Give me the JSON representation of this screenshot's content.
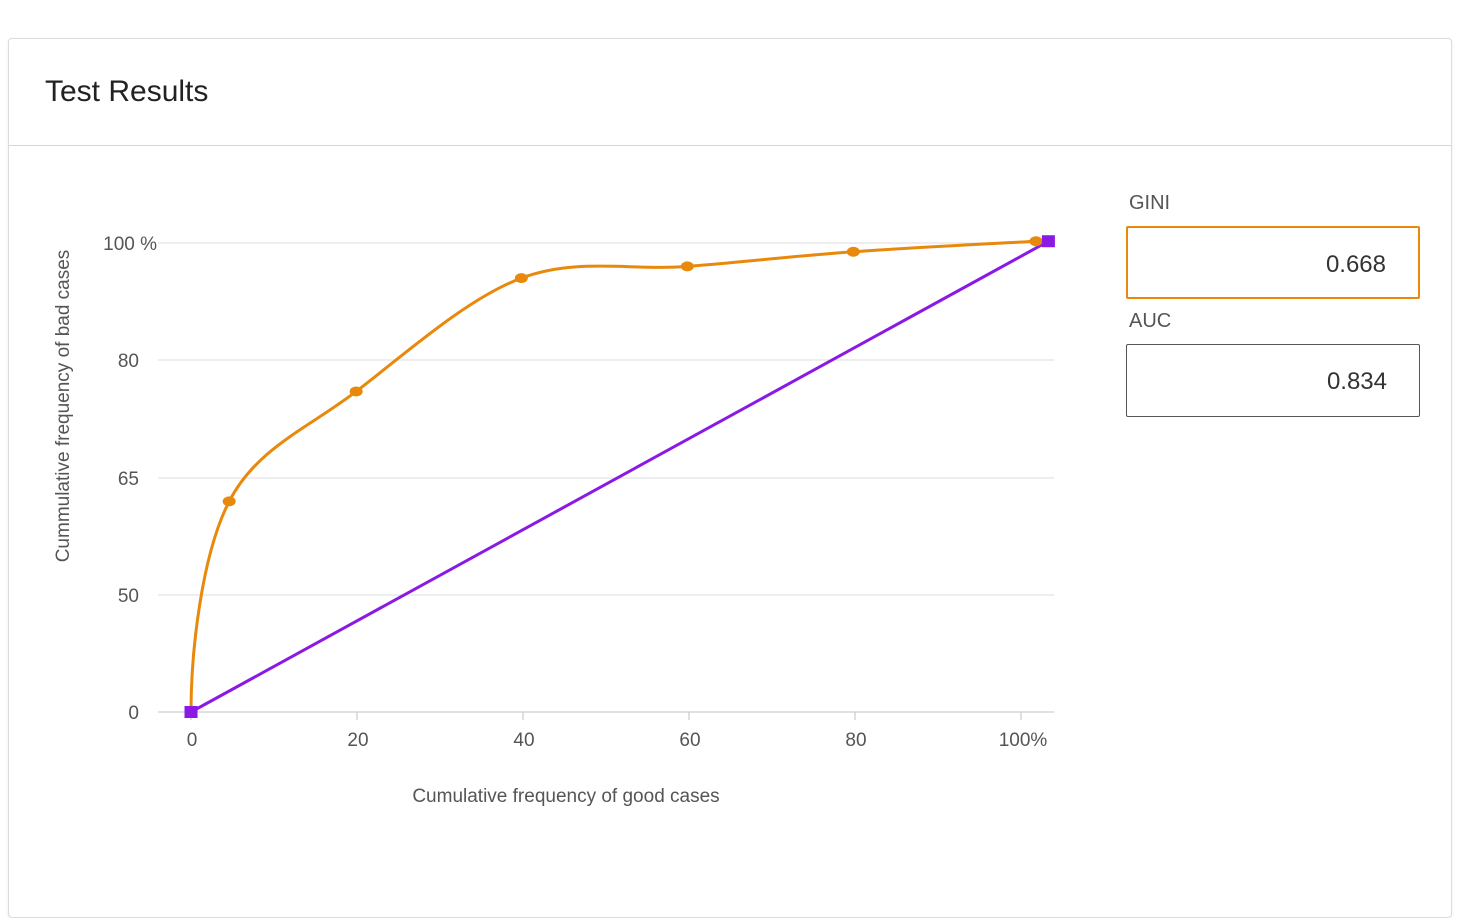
{
  "card": {
    "title": "Test Results"
  },
  "metrics": {
    "gini_label": "GINI",
    "gini_value": "0.668",
    "auc_label": "AUC",
    "auc_value": "0.834"
  },
  "colors": {
    "model_curve": "#e8890c",
    "baseline": "#8a19e6",
    "grid": "#e4e4e4",
    "axis_text": "#555555"
  },
  "chart_data": {
    "type": "line",
    "xlabel": "Cumulative frequency of good cases",
    "ylabel": "Cummulative frequency of bad cases",
    "x_ticks": [
      {
        "value": 0,
        "label": "0"
      },
      {
        "value": 20,
        "label": "20"
      },
      {
        "value": 40,
        "label": "40"
      },
      {
        "value": 60,
        "label": "60"
      },
      {
        "value": 80,
        "label": "80"
      },
      {
        "value": 100,
        "label": "100%"
      }
    ],
    "y_ticks": [
      {
        "value": 0,
        "label": "0"
      },
      {
        "value": 50,
        "label": "50"
      },
      {
        "value": 65,
        "label": "65"
      },
      {
        "value": 80,
        "label": "80"
      },
      {
        "value": 100,
        "label": "100 %"
      }
    ],
    "grid": true,
    "series": [
      {
        "color": "#e8890c",
        "marker": "circle",
        "points": [
          {
            "x": 0,
            "y": 0
          },
          {
            "x": 4.6,
            "y": 62
          },
          {
            "x": 19.9,
            "y": 76
          },
          {
            "x": 39.8,
            "y": 94
          },
          {
            "x": 59.8,
            "y": 96
          },
          {
            "x": 79.8,
            "y": 98.5
          },
          {
            "x": 101.8,
            "y": 100.3
          }
        ]
      },
      {
        "color": "#8a19e6",
        "marker": "square",
        "points": [
          {
            "x": 0,
            "y": 0
          },
          {
            "x": 103.3,
            "y": 100.3
          }
        ]
      }
    ]
  }
}
